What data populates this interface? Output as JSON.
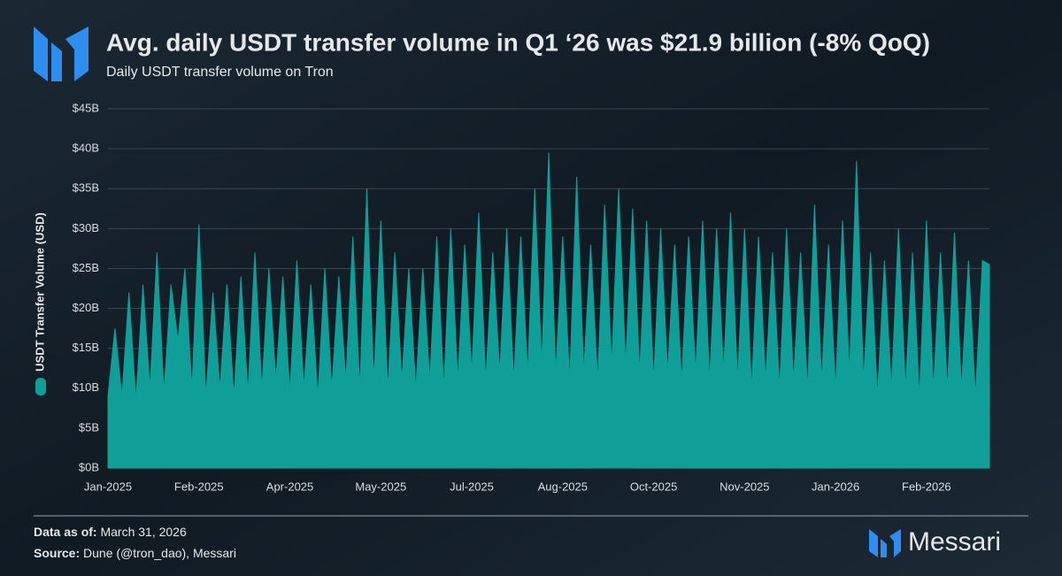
{
  "chart_data": {
    "type": "area",
    "title": "Avg. daily USDT transfer volume in Q1 ‘26 was $21.9 billion (-8% QoQ)",
    "subtitle": "Daily USDT transfer volume on Tron",
    "y_label": "USDT Transfer Volume (USD)",
    "color": "#0f9e98",
    "grid": true,
    "ylim": [
      0,
      45
    ],
    "yticks": [
      {
        "value": 0,
        "label": "$0B"
      },
      {
        "value": 5,
        "label": "$5B"
      },
      {
        "value": 10,
        "label": "$10B"
      },
      {
        "value": 15,
        "label": "$15B"
      },
      {
        "value": 20,
        "label": "$20B"
      },
      {
        "value": 25,
        "label": "$25B"
      },
      {
        "value": 30,
        "label": "$30B"
      },
      {
        "value": 35,
        "label": "$35B"
      },
      {
        "value": 40,
        "label": "$40B"
      },
      {
        "value": 45,
        "label": "$45B"
      }
    ],
    "categories": [
      "Jan-2025",
      null,
      null,
      null,
      null,
      null,
      null,
      null,
      null,
      null,
      null,
      null,
      null,
      "Feb-2025",
      null,
      null,
      null,
      null,
      null,
      null,
      null,
      null,
      null,
      null,
      null,
      null,
      "Apr-2025",
      null,
      null,
      null,
      null,
      null,
      null,
      null,
      null,
      null,
      null,
      null,
      null,
      "May-2025",
      null,
      null,
      null,
      null,
      null,
      null,
      null,
      null,
      null,
      null,
      null,
      null,
      "Jul-2025",
      null,
      null,
      null,
      null,
      null,
      null,
      null,
      null,
      null,
      null,
      null,
      null,
      "Aug-2025",
      null,
      null,
      null,
      null,
      null,
      null,
      null,
      null,
      null,
      null,
      null,
      null,
      "Oct-2025",
      null,
      null,
      null,
      null,
      null,
      null,
      null,
      null,
      null,
      null,
      null,
      null,
      "Nov-2025",
      null,
      null,
      null,
      null,
      null,
      null,
      null,
      null,
      null,
      null,
      null,
      null,
      "Jan-2026",
      null,
      null,
      null,
      null,
      null,
      null,
      null,
      null,
      null,
      null,
      null,
      null,
      "Feb-2026",
      null,
      null,
      null,
      null,
      null,
      null,
      null,
      null,
      null
    ],
    "values": [
      9,
      17.5,
      9,
      22,
      8.5,
      23,
      10,
      27,
      9.5,
      23,
      16,
      25,
      10,
      30.5,
      9,
      22,
      10,
      23,
      9,
      24,
      9.5,
      27,
      10,
      25,
      11,
      24,
      9.5,
      26,
      10,
      23,
      9,
      25,
      10,
      24,
      11,
      29,
      10,
      35,
      11,
      31,
      10,
      27,
      11,
      25,
      10,
      25,
      11,
      29,
      10,
      30,
      11,
      28,
      12,
      32,
      11,
      27,
      12,
      30,
      11,
      29,
      12,
      35,
      13,
      39.5,
      12,
      29,
      11,
      36.5,
      12,
      28,
      11,
      33,
      13,
      35,
      13,
      32.5,
      12,
      31,
      11,
      30,
      12,
      28,
      11,
      29,
      12,
      31,
      11,
      30,
      12,
      32,
      11,
      30,
      10,
      29,
      11,
      27,
      10,
      30,
      11,
      27,
      10,
      33,
      11,
      28,
      10,
      31,
      12,
      38.5,
      11,
      27,
      9,
      26,
      10,
      30,
      10,
      27,
      9,
      31,
      10,
      27,
      10,
      29.5,
      10,
      26,
      9,
      26,
      25.5
    ]
  },
  "footer": {
    "data_as_of_label": "Data as of:",
    "data_as_of": "March 31, 2026",
    "source_label": "Source:",
    "source": "Dune (@tron_dao), Messari",
    "brand": "Messari"
  }
}
